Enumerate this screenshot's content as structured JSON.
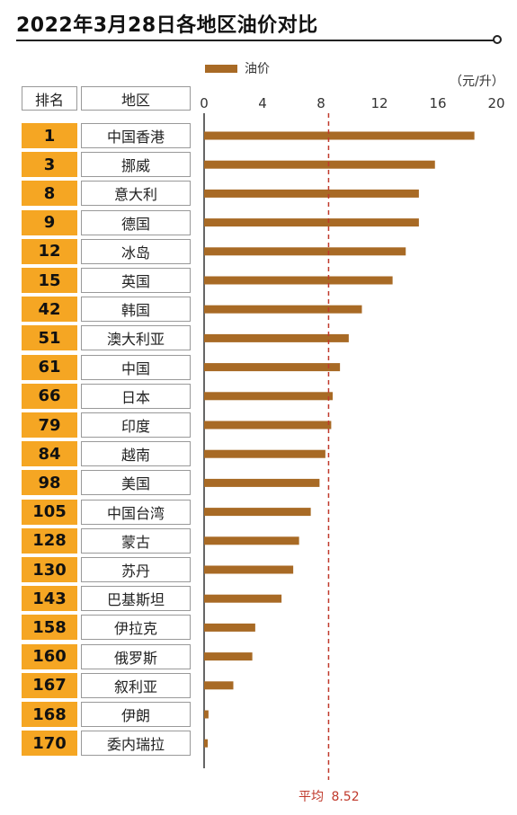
{
  "title": "2022年3月28日各地区油价对比",
  "legend_label": "油价",
  "unit": "（元/升）",
  "headers": {
    "rank": "排名",
    "region": "地区"
  },
  "colors": {
    "bar": "#a86a25",
    "rank_bg": "#f5a623",
    "average": "#c0392b",
    "title_rule": "#222222"
  },
  "average": {
    "label": "平均",
    "value": 8.52,
    "display": "8.52"
  },
  "chart_data": {
    "type": "bar",
    "orientation": "horizontal",
    "title": "2022年3月28日各地区油价对比",
    "xlim": [
      0,
      20
    ],
    "xticks": [
      "0",
      "4",
      "8",
      "12",
      "16",
      "20"
    ],
    "unit": "（元/升）",
    "legend": "top-left",
    "grid": false,
    "series": [
      {
        "name": "油价",
        "values": [
          18.5,
          15.8,
          14.7,
          14.7,
          13.8,
          12.9,
          10.8,
          9.9,
          9.3,
          8.8,
          8.7,
          8.3,
          7.9,
          7.3,
          6.5,
          6.1,
          5.3,
          3.5,
          3.3,
          2.0,
          0.3,
          0.25
        ]
      }
    ],
    "rows": [
      {
        "rank": "1",
        "region": "中国香港"
      },
      {
        "rank": "3",
        "region": "挪威"
      },
      {
        "rank": "8",
        "region": "意大利"
      },
      {
        "rank": "9",
        "region": "德国"
      },
      {
        "rank": "12",
        "region": "冰岛"
      },
      {
        "rank": "15",
        "region": "英国"
      },
      {
        "rank": "42",
        "region": "韩国"
      },
      {
        "rank": "51",
        "region": "澳大利亚"
      },
      {
        "rank": "61",
        "region": "中国"
      },
      {
        "rank": "66",
        "region": "日本"
      },
      {
        "rank": "79",
        "region": "印度"
      },
      {
        "rank": "84",
        "region": "越南"
      },
      {
        "rank": "98",
        "region": "美国"
      },
      {
        "rank": "105",
        "region": "中国台湾"
      },
      {
        "rank": "128",
        "region": "蒙古"
      },
      {
        "rank": "130",
        "region": "苏丹"
      },
      {
        "rank": "143",
        "region": "巴基斯坦"
      },
      {
        "rank": "158",
        "region": "伊拉克"
      },
      {
        "rank": "160",
        "region": "俄罗斯"
      },
      {
        "rank": "167",
        "region": "叙利亚"
      },
      {
        "rank": "168",
        "region": "伊朗"
      },
      {
        "rank": "170",
        "region": "委内瑞拉"
      }
    ]
  }
}
